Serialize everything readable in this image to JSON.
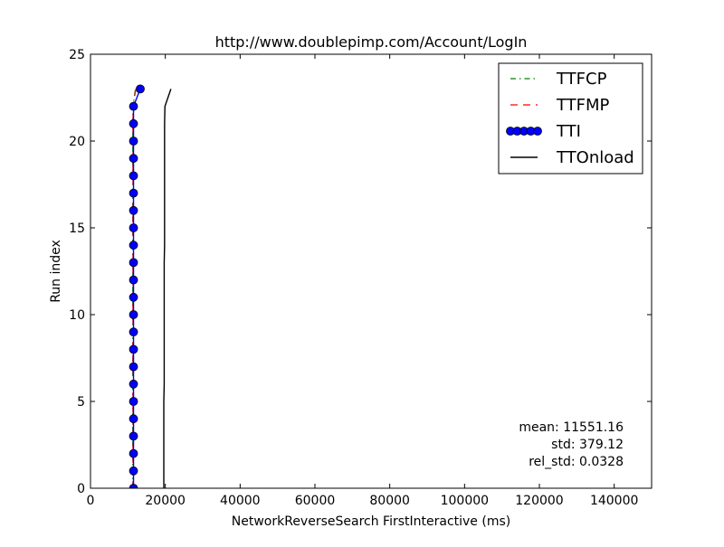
{
  "chart_data": {
    "type": "line",
    "title": "http://www.doublepimp.com/Account/LogIn",
    "xlabel": "NetworkReverseSearch FirstInteractive (ms)",
    "ylabel": "Run index",
    "xlim": [
      0,
      150000
    ],
    "ylim": [
      0,
      25
    ],
    "xticks": [
      0,
      20000,
      40000,
      60000,
      80000,
      100000,
      120000,
      140000
    ],
    "xtick_labels": [
      "0",
      "20000",
      "40000",
      "60000",
      "80000",
      "100000",
      "120000",
      "140000"
    ],
    "yticks": [
      0,
      5,
      10,
      15,
      20,
      25
    ],
    "ytick_labels": [
      "0",
      "5",
      "10",
      "15",
      "20",
      "25"
    ],
    "grid": false,
    "legend_position": "top-right",
    "series": [
      {
        "name": "TTFCP",
        "color": "#008000",
        "style": "dashdot",
        "marker": "none",
        "x": [
          11300,
          11300,
          11300,
          11300,
          11300,
          11300,
          11300,
          11300,
          11300,
          11300,
          11300,
          11300,
          11300,
          11300,
          11300,
          11300,
          11300,
          11300,
          11300,
          11300,
          11300,
          11300,
          11350,
          12000
        ],
        "y": [
          0,
          1,
          2,
          3,
          4,
          5,
          6,
          7,
          8,
          9,
          10,
          11,
          12,
          13,
          14,
          15,
          16,
          17,
          18,
          19,
          20,
          21,
          22,
          23
        ]
      },
      {
        "name": "TTFMP",
        "color": "#ff0000",
        "style": "dashed",
        "marker": "none",
        "x": [
          11350,
          11350,
          11350,
          11350,
          11350,
          11350,
          11350,
          11350,
          11350,
          11350,
          11350,
          11350,
          11350,
          11350,
          11350,
          11350,
          11350,
          11350,
          11350,
          11350,
          11350,
          11350,
          11400,
          12100
        ],
        "y": [
          0,
          1,
          2,
          3,
          4,
          5,
          6,
          7,
          8,
          9,
          10,
          11,
          12,
          13,
          14,
          15,
          16,
          17,
          18,
          19,
          20,
          21,
          22,
          23
        ]
      },
      {
        "name": "TTI",
        "color": "#0000ff",
        "style": "solid",
        "marker": "circle",
        "x": [
          11500,
          11500,
          11500,
          11500,
          11500,
          11500,
          11500,
          11500,
          11500,
          11500,
          11500,
          11500,
          11500,
          11500,
          11500,
          11500,
          11500,
          11500,
          11500,
          11500,
          11500,
          11500,
          11500,
          13300
        ],
        "y": [
          0,
          1,
          2,
          3,
          4,
          5,
          6,
          7,
          8,
          9,
          10,
          11,
          12,
          13,
          14,
          15,
          16,
          17,
          18,
          19,
          20,
          21,
          22,
          23
        ]
      },
      {
        "name": "TTOnload",
        "color": "#000000",
        "style": "solid",
        "marker": "none",
        "x": [
          19600,
          19600,
          19600,
          19600,
          19600,
          19600,
          19700,
          19700,
          19700,
          19700,
          19700,
          19700,
          19700,
          19700,
          19800,
          19800,
          19800,
          19800,
          19800,
          19800,
          19800,
          19800,
          19900,
          21500
        ],
        "y": [
          0,
          1,
          2,
          3,
          4,
          5,
          6,
          7,
          8,
          9,
          10,
          11,
          12,
          13,
          14,
          15,
          16,
          17,
          18,
          19,
          20,
          21,
          22,
          23
        ]
      }
    ],
    "annotations": [
      "mean: 11551.16",
      "std: 379.12",
      "rel_std: 0.0328"
    ]
  }
}
